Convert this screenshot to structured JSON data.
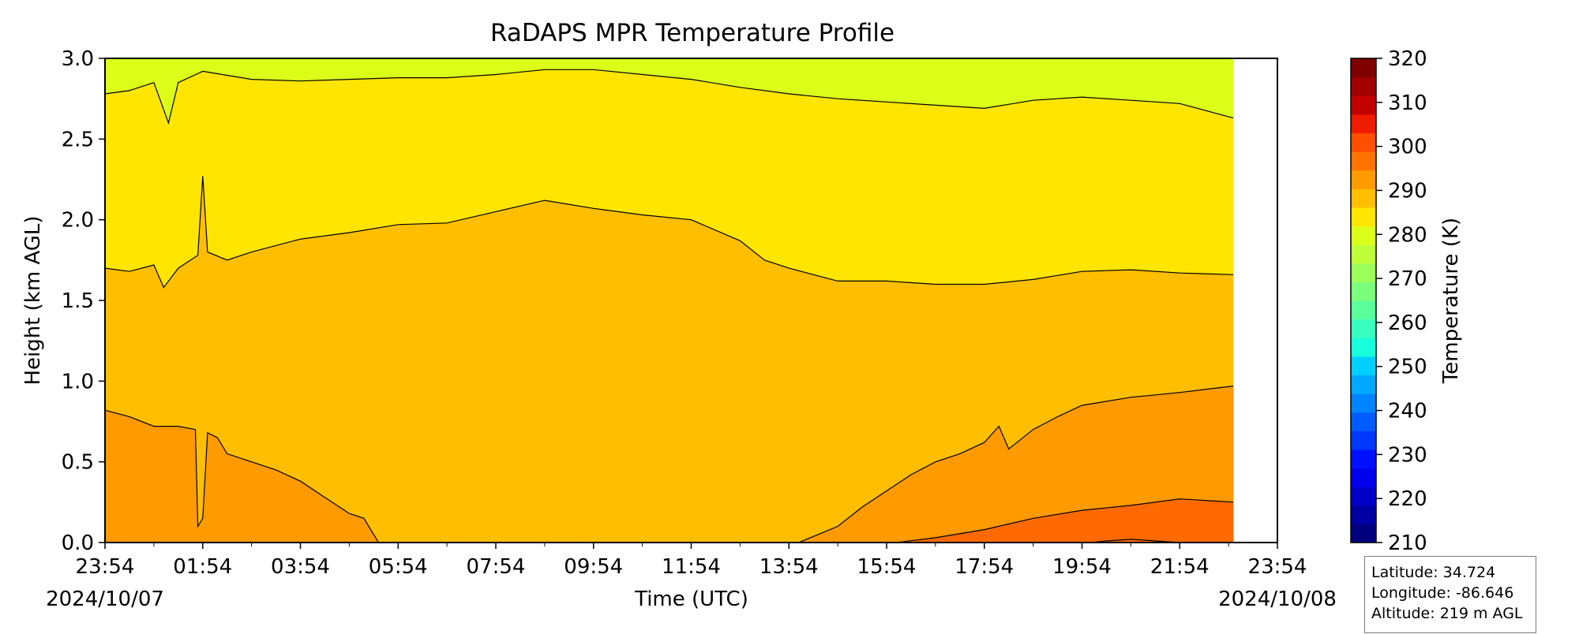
{
  "chart_data": {
    "type": "heatmap",
    "title": "RaDAPS MPR Temperature Profile",
    "xlabel": "Time (UTC)",
    "ylabel": "Height (km AGL)",
    "x_tick_labels": [
      "23:54",
      "01:54",
      "03:54",
      "05:54",
      "07:54",
      "09:54",
      "11:54",
      "13:54",
      "15:54",
      "17:54",
      "19:54",
      "21:54",
      "23:54"
    ],
    "x_start_date": "2024/10/07",
    "x_end_date": "2024/10/08",
    "ylim": [
      0.0,
      3.0
    ],
    "y_ticks": [
      "0.0",
      "0.5",
      "1.0",
      "1.5",
      "2.0",
      "2.5",
      "3.0"
    ],
    "colorbar": {
      "label": "Temperature (K)",
      "range": [
        210,
        320
      ],
      "tick_labels": [
        "210",
        "220",
        "230",
        "240",
        "250",
        "260",
        "270",
        "280",
        "290",
        "300",
        "310",
        "320"
      ],
      "colors": [
        "#00007f",
        "#0000a3",
        "#0000c8",
        "#0000ed",
        "#0010ff",
        "#0038ff",
        "#005cff",
        "#0084ff",
        "#00a8ff",
        "#00d0ff",
        "#18ffdd",
        "#39ffbe",
        "#5aff9c",
        "#7bff7b",
        "#9cff5a",
        "#beff39",
        "#dcff1a",
        "#ffe500",
        "#ffbf00",
        "#ff9a00",
        "#ff7400",
        "#ff4f00",
        "#ed1c00",
        "#c30000",
        "#a30000",
        "#7f0000"
      ]
    },
    "filled_bands": [
      {
        "range_K": "267.5-277.5",
        "color": "#dcff1a"
      },
      {
        "range_K": "277.5-282.5",
        "color": "#ffe500"
      },
      {
        "range_K": "282.5-287.5",
        "color": "#ffbf00"
      },
      {
        "range_K": "287.5-292.5",
        "color": "#ff9a00"
      },
      {
        "range_K": "292.5-297.5",
        "color": "#ff6a00"
      }
    ],
    "contour_series": [
      {
        "x_hours": [
          0,
          0.5,
          1,
          1.3,
          1.5,
          2,
          3,
          4,
          5,
          6,
          7,
          8,
          9,
          10,
          11,
          12,
          13,
          14,
          15,
          16,
          17,
          18,
          19,
          20,
          21,
          22,
          23.1
        ],
        "y_km": [
          2.78,
          2.8,
          2.85,
          2.6,
          2.85,
          2.92,
          2.87,
          2.86,
          2.87,
          2.88,
          2.88,
          2.9,
          2.93,
          2.93,
          2.9,
          2.87,
          2.82,
          2.78,
          2.75,
          2.73,
          2.71,
          2.69,
          2.74,
          2.76,
          2.74,
          2.72,
          2.63
        ]
      },
      {
        "x_hours": [
          0,
          0.5,
          1,
          1.2,
          1.5,
          1.9,
          2.0,
          2.1,
          2.5,
          3,
          4,
          5,
          6,
          7,
          8,
          9,
          10,
          11,
          12,
          13,
          13.5,
          14,
          15,
          16,
          17,
          18,
          19,
          20,
          21,
          22,
          23.1
        ],
        "y_km": [
          1.7,
          1.68,
          1.72,
          1.58,
          1.7,
          1.78,
          2.27,
          1.8,
          1.75,
          1.8,
          1.88,
          1.92,
          1.97,
          1.98,
          2.05,
          2.12,
          2.07,
          2.03,
          2.0,
          1.87,
          1.75,
          1.7,
          1.62,
          1.62,
          1.6,
          1.6,
          1.63,
          1.68,
          1.69,
          1.67,
          1.66
        ]
      },
      {
        "x_hours": [
          0,
          0.5,
          1,
          1.5,
          1.85,
          1.9,
          2.0,
          2.1,
          2.3,
          2.5,
          3,
          3.5,
          4,
          4.5,
          5,
          5.3,
          5.5,
          5.6
        ],
        "y_km": [
          0.82,
          0.78,
          0.72,
          0.72,
          0.7,
          0.1,
          0.15,
          0.68,
          0.65,
          0.55,
          0.5,
          0.45,
          0.38,
          0.28,
          0.18,
          0.15,
          0.05,
          0.0
        ]
      },
      {
        "x_hours": [
          14.2,
          15,
          15.5,
          16,
          16.5,
          17,
          17.5,
          18,
          18.3,
          18.5,
          19,
          19.5,
          20,
          21,
          22,
          23.1
        ],
        "y_km": [
          0.0,
          0.1,
          0.22,
          0.32,
          0.42,
          0.5,
          0.55,
          0.62,
          0.72,
          0.58,
          0.7,
          0.78,
          0.85,
          0.9,
          0.93,
          0.97
        ]
      },
      {
        "x_hours": [
          16.2,
          17,
          18,
          19,
          20,
          21,
          22,
          23.1
        ],
        "y_km": [
          0.0,
          0.03,
          0.08,
          0.15,
          0.2,
          0.23,
          0.27,
          0.25
        ]
      },
      {
        "x_hours": [
          20.2,
          20.5,
          21,
          21.5,
          22
        ],
        "y_km": [
          0.0,
          0.01,
          0.02,
          0.01,
          0.0
        ]
      }
    ]
  },
  "info_box": {
    "latitude": "Latitude: 34.724",
    "longitude": "Longitude: -86.646",
    "altitude": "Altitude: 219 m AGL"
  }
}
